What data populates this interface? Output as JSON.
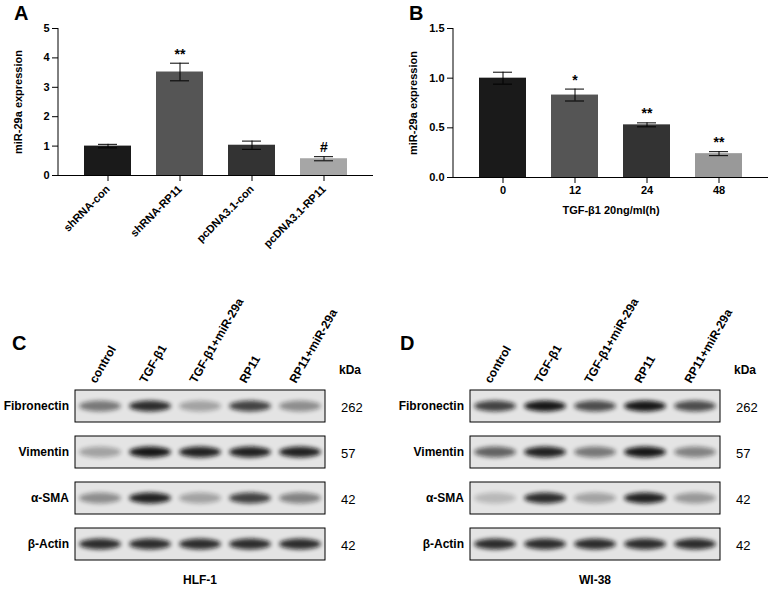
{
  "chart_data": [
    {
      "type": "bar",
      "annotations": [
        "A"
      ],
      "categories": [
        "shRNA-con",
        "shRNA-RP11",
        "pcDNA3.1-con",
        "pcDNA3.1-RP11"
      ],
      "values": [
        1.0,
        3.52,
        1.03,
        0.57
      ],
      "errors": [
        0.06,
        0.3,
        0.14,
        0.07
      ],
      "significance": [
        null,
        "**",
        null,
        "#"
      ],
      "colors": [
        "#1a1a1a",
        "#555555",
        "#333333",
        "#a6a6a6"
      ],
      "y_label": "miR-29a expression",
      "ylim": [
        0,
        5
      ],
      "yticks": [
        0,
        1,
        2,
        3,
        4,
        5
      ],
      "grid": false
    },
    {
      "type": "bar",
      "annotations": [
        "B"
      ],
      "categories": [
        "0",
        "12",
        "24",
        "48"
      ],
      "values": [
        1.0,
        0.83,
        0.53,
        0.24
      ],
      "errors": [
        0.06,
        0.06,
        0.02,
        0.02
      ],
      "significance": [
        null,
        "*",
        "**",
        "**"
      ],
      "colors": [
        "#1a1a1a",
        "#555555",
        "#333333",
        "#999999"
      ],
      "y_label": "miR-29a expression",
      "x_label": "TGF-β1 20ng/ml(h)",
      "ylim": [
        0,
        1.5
      ],
      "yticks": [
        {
          "value": 0,
          "label": "0.0"
        },
        {
          "value": 0.5,
          "label": "0.5"
        },
        {
          "value": 1,
          "label": "1.0"
        },
        {
          "value": 1.5,
          "label": "1.5"
        }
      ],
      "grid": false
    }
  ],
  "blots": [
    {
      "panel": "C",
      "cell_line": "HLF-1",
      "unit": "kDa",
      "lanes": [
        "control",
        "TGF-β1",
        "TGF-β1+miR-29a",
        "RP11",
        "RP11+miR-29a"
      ],
      "rows": [
        {
          "protein": "Fibronectin",
          "kda": 262,
          "intensity": [
            0.5,
            0.85,
            0.3,
            0.75,
            0.4
          ]
        },
        {
          "protein": "Vimentin",
          "kda": 57,
          "intensity": [
            0.3,
            0.95,
            0.9,
            0.9,
            0.9
          ]
        },
        {
          "protein": "α-SMA",
          "kda": 42,
          "intensity": [
            0.4,
            0.9,
            0.3,
            0.75,
            0.45
          ]
        },
        {
          "protein": "β-Actin",
          "kda": 42,
          "intensity": [
            0.85,
            0.85,
            0.85,
            0.85,
            0.85
          ]
        }
      ]
    },
    {
      "panel": "D",
      "cell_line": "WI-38",
      "unit": "kDa",
      "lanes": [
        "control",
        "TGF-β1",
        "TGF-β1+miR-29a",
        "RP11",
        "RP11+miR-29a"
      ],
      "rows": [
        {
          "protein": "Fibronectin",
          "kda": 262,
          "intensity": [
            0.75,
            0.95,
            0.7,
            0.95,
            0.7
          ]
        },
        {
          "protein": "Vimentin",
          "kda": 57,
          "intensity": [
            0.6,
            0.9,
            0.5,
            0.95,
            0.45
          ]
        },
        {
          "protein": "α-SMA",
          "kda": 42,
          "intensity": [
            0.2,
            0.85,
            0.3,
            0.9,
            0.35
          ]
        },
        {
          "protein": "β-Actin",
          "kda": 42,
          "intensity": [
            0.85,
            0.85,
            0.85,
            0.85,
            0.85
          ]
        }
      ]
    }
  ]
}
